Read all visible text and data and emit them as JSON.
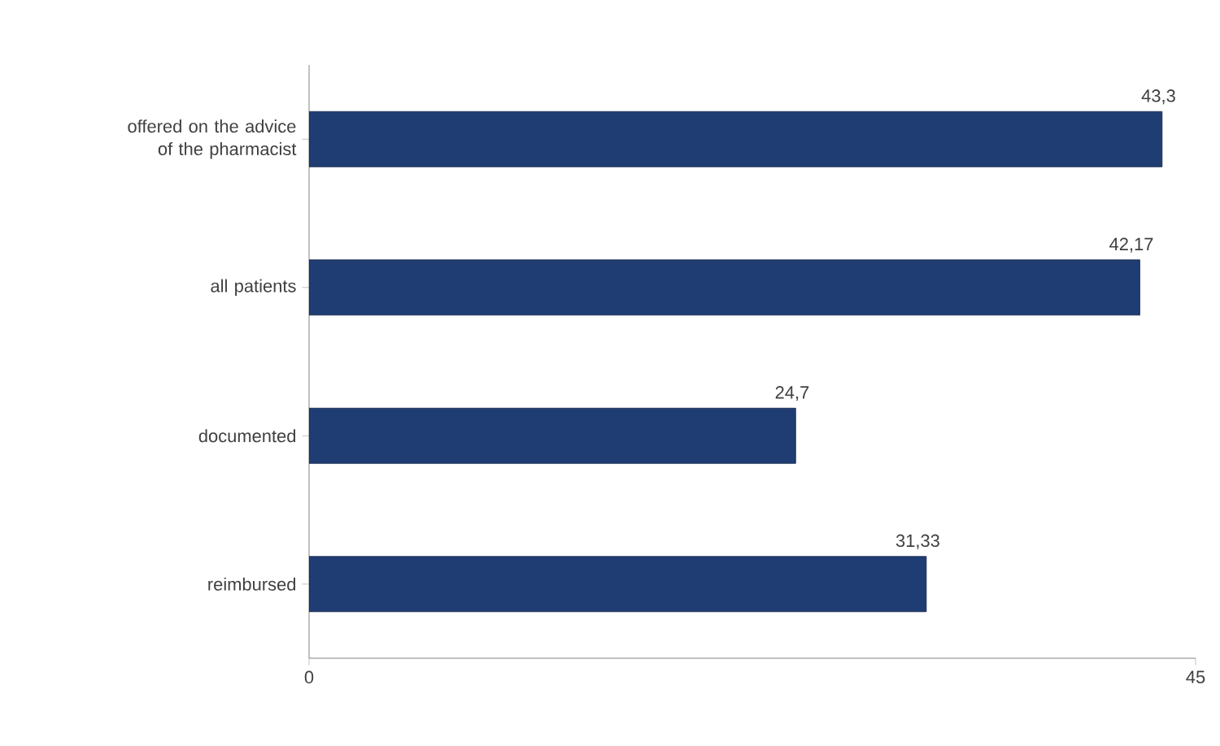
{
  "chart_data": {
    "type": "bar",
    "orientation": "horizontal",
    "categories": [
      "offered on the advice of the pharmacist",
      "all patients",
      "documented",
      "reimbursed"
    ],
    "values": [
      43.3,
      42.17,
      24.7,
      31.33
    ],
    "value_labels": [
      "43,3",
      "42,17",
      "24,7",
      "31,33"
    ],
    "color": "#1f3d73",
    "xlim": [
      0,
      45
    ],
    "xticks": [
      0,
      45
    ],
    "grid": false
  }
}
